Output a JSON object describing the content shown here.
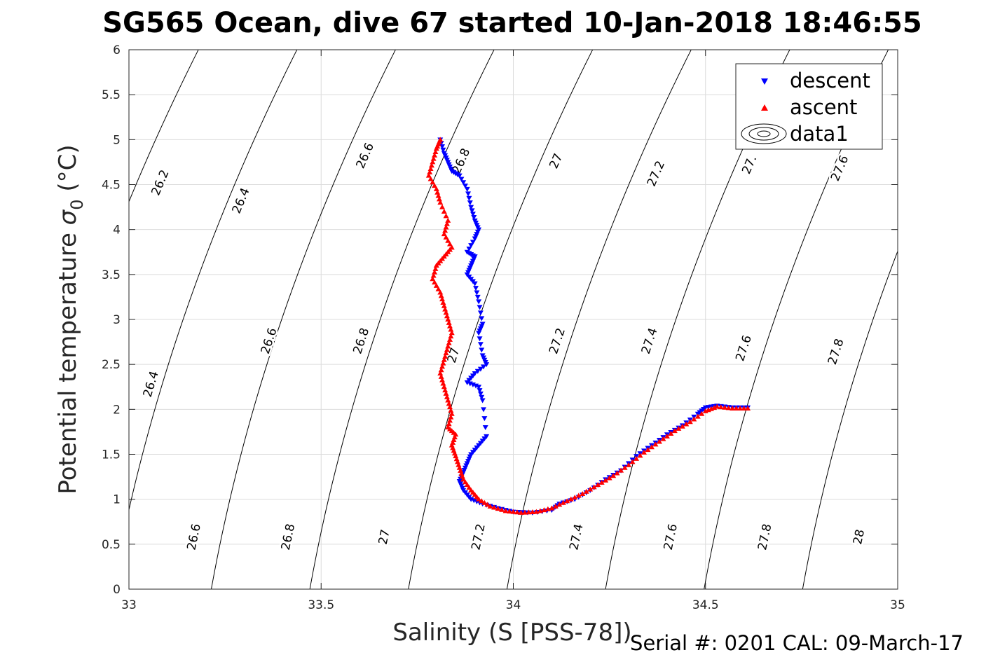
{
  "chart_data": {
    "type": "scatter",
    "title": "SG565 Ocean, dive 67 started 10-Jan-2018 18:46:55",
    "xlabel": "Salinity (S [PSS-78])",
    "ylabel_main": "Potential temperature ",
    "ylabel_sigma": "σ",
    "ylabel_sub": "0",
    "ylabel_unit": " (°C)",
    "xlim": [
      33,
      35
    ],
    "ylim": [
      0,
      6
    ],
    "x_ticks": [
      "33",
      "33.5",
      "34",
      "34.5",
      "35"
    ],
    "y_ticks": [
      "0",
      "0.5",
      "1",
      "1.5",
      "2",
      "2.5",
      "3",
      "3.5",
      "4",
      "4.5",
      "5",
      "5.5",
      "6"
    ],
    "grid": true,
    "legend_position": "top-right",
    "footer": "Serial #: 0201  CAL: 09-March-17",
    "colors": {
      "descent": "#0000ff",
      "ascent": "#ff0000",
      "contour": "#000000",
      "grid": "#dcdcdc"
    },
    "series": [
      {
        "name": "descent",
        "marker": "triangle-down",
        "points": [
          [
            33.81,
            5.0
          ],
          [
            33.82,
            4.85
          ],
          [
            33.83,
            4.75
          ],
          [
            33.84,
            4.65
          ],
          [
            33.86,
            4.6
          ],
          [
            33.88,
            4.45
          ],
          [
            33.89,
            4.25
          ],
          [
            33.9,
            4.1
          ],
          [
            33.91,
            4.0
          ],
          [
            33.9,
            3.9
          ],
          [
            33.88,
            3.75
          ],
          [
            33.9,
            3.7
          ],
          [
            33.89,
            3.6
          ],
          [
            33.88,
            3.5
          ],
          [
            33.9,
            3.4
          ],
          [
            33.91,
            3.2
          ],
          [
            33.92,
            2.95
          ],
          [
            33.91,
            2.85
          ],
          [
            33.92,
            2.6
          ],
          [
            33.93,
            2.5
          ],
          [
            33.9,
            2.4
          ],
          [
            33.88,
            2.3
          ],
          [
            33.91,
            2.25
          ],
          [
            33.92,
            2.1
          ],
          [
            33.93,
            1.7
          ],
          [
            33.91,
            1.6
          ],
          [
            33.89,
            1.5
          ],
          [
            33.88,
            1.4
          ],
          [
            33.87,
            1.3
          ],
          [
            33.86,
            1.2
          ],
          [
            33.87,
            1.1
          ],
          [
            33.89,
            1.0
          ],
          [
            33.92,
            0.95
          ],
          [
            33.96,
            0.9
          ],
          [
            34.0,
            0.86
          ],
          [
            34.05,
            0.85
          ],
          [
            34.1,
            0.88
          ],
          [
            34.12,
            0.95
          ],
          [
            34.16,
            1.0
          ],
          [
            34.2,
            1.1
          ],
          [
            34.24,
            1.22
          ],
          [
            34.28,
            1.32
          ],
          [
            34.32,
            1.48
          ],
          [
            34.36,
            1.6
          ],
          [
            34.4,
            1.72
          ],
          [
            34.44,
            1.82
          ],
          [
            34.48,
            1.95
          ],
          [
            34.5,
            2.02
          ],
          [
            34.53,
            2.04
          ],
          [
            34.57,
            2.02
          ],
          [
            34.61,
            2.02
          ]
        ]
      },
      {
        "name": "ascent",
        "marker": "triangle-up",
        "points": [
          [
            33.81,
            5.0
          ],
          [
            33.8,
            4.9
          ],
          [
            33.79,
            4.75
          ],
          [
            33.78,
            4.6
          ],
          [
            33.8,
            4.45
          ],
          [
            33.81,
            4.3
          ],
          [
            33.83,
            4.1
          ],
          [
            33.82,
            3.95
          ],
          [
            33.84,
            3.8
          ],
          [
            33.82,
            3.7
          ],
          [
            33.8,
            3.6
          ],
          [
            33.79,
            3.45
          ],
          [
            33.81,
            3.3
          ],
          [
            33.82,
            3.15
          ],
          [
            33.83,
            3.0
          ],
          [
            33.84,
            2.85
          ],
          [
            33.83,
            2.7
          ],
          [
            33.82,
            2.55
          ],
          [
            33.81,
            2.4
          ],
          [
            33.82,
            2.25
          ],
          [
            33.83,
            2.1
          ],
          [
            33.84,
            1.95
          ],
          [
            33.83,
            1.8
          ],
          [
            33.85,
            1.72
          ],
          [
            33.84,
            1.6
          ],
          [
            33.85,
            1.48
          ],
          [
            33.86,
            1.35
          ],
          [
            33.87,
            1.22
          ],
          [
            33.89,
            1.1
          ],
          [
            33.91,
            1.0
          ],
          [
            33.94,
            0.92
          ],
          [
            33.98,
            0.87
          ],
          [
            34.02,
            0.85
          ],
          [
            34.06,
            0.86
          ],
          [
            34.1,
            0.9
          ],
          [
            34.14,
            0.98
          ],
          [
            34.18,
            1.06
          ],
          [
            34.22,
            1.16
          ],
          [
            34.26,
            1.26
          ],
          [
            34.3,
            1.38
          ],
          [
            34.34,
            1.52
          ],
          [
            34.38,
            1.64
          ],
          [
            34.42,
            1.76
          ],
          [
            34.46,
            1.86
          ],
          [
            34.5,
            1.98
          ],
          [
            34.53,
            2.03
          ],
          [
            34.57,
            2.01
          ],
          [
            34.61,
            2.01
          ]
        ]
      }
    ],
    "legend": {
      "descent_label": "descent",
      "ascent_label": "ascent",
      "data1_label": "data1"
    },
    "contour_labels": [
      {
        "text": "26.2",
        "s": 33.082,
        "t": 4.52
      },
      {
        "text": "26.4",
        "s": 33.292,
        "t": 4.32
      },
      {
        "text": "26.6",
        "s": 33.615,
        "t": 4.82
      },
      {
        "text": "26.8",
        "s": 33.865,
        "t": 4.76
      },
      {
        "text": "27",
        "s": 34.112,
        "t": 4.76
      },
      {
        "text": "27.2",
        "s": 34.372,
        "t": 4.62
      },
      {
        "text": "27.",
        "s": 34.615,
        "t": 4.72
      },
      {
        "text": "27.6",
        "s": 34.85,
        "t": 4.68
      },
      {
        "text": "26.4",
        "s": 33.058,
        "t": 2.28
      },
      {
        "text": "26.6",
        "s": 33.365,
        "t": 2.76
      },
      {
        "text": "26.8",
        "s": 33.605,
        "t": 2.76
      },
      {
        "text": "27",
        "s": 33.845,
        "t": 2.6
      },
      {
        "text": "27.2",
        "s": 34.115,
        "t": 2.76
      },
      {
        "text": "27.4",
        "s": 34.355,
        "t": 2.76
      },
      {
        "text": "27.6",
        "s": 34.6,
        "t": 2.68
      },
      {
        "text": "27.8",
        "s": 34.84,
        "t": 2.64
      },
      {
        "text": "26.6",
        "s": 33.17,
        "t": 0.58
      },
      {
        "text": "26.8",
        "s": 33.415,
        "t": 0.58
      },
      {
        "text": "27",
        "s": 33.665,
        "t": 0.58
      },
      {
        "text": "27.2",
        "s": 33.91,
        "t": 0.58
      },
      {
        "text": "27.4",
        "s": 34.165,
        "t": 0.58
      },
      {
        "text": "27.6",
        "s": 34.41,
        "t": 0.58
      },
      {
        "text": "27.8",
        "s": 34.655,
        "t": 0.58
      },
      {
        "text": "28",
        "s": 34.9,
        "t": 0.58
      }
    ]
  }
}
